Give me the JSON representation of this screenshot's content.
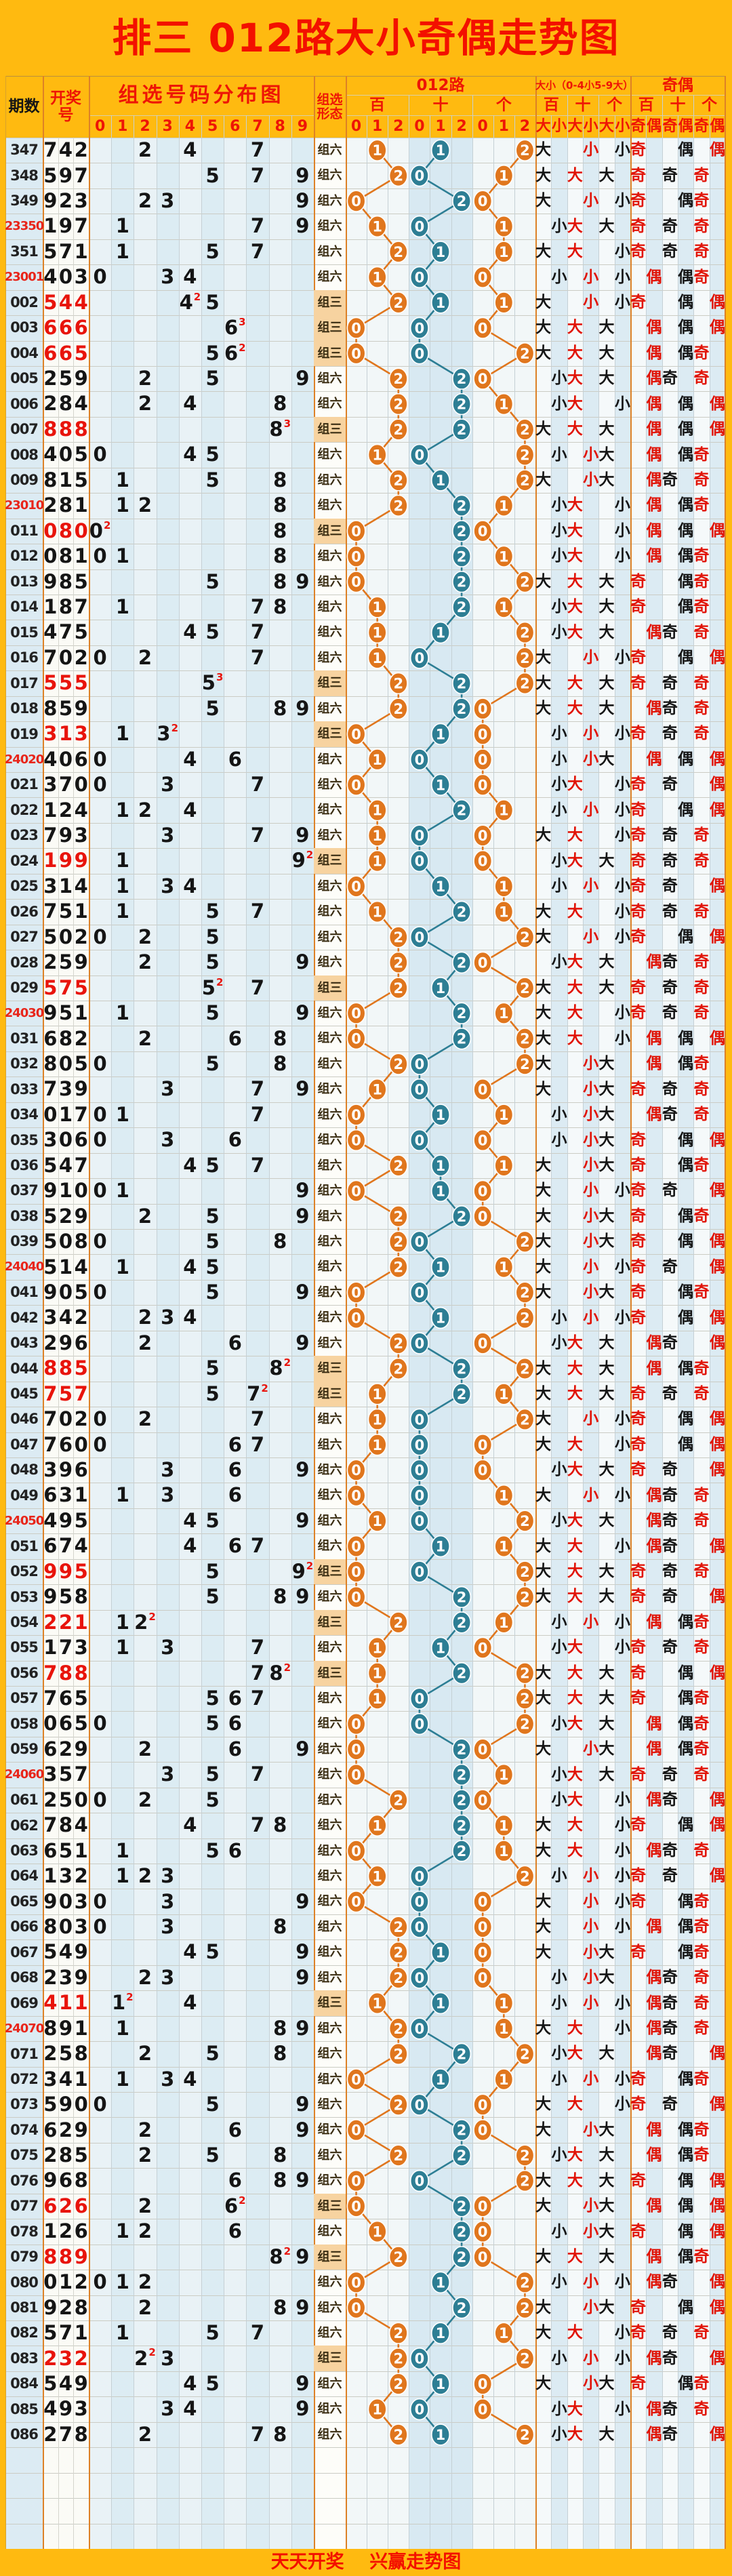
{
  "title": "排三 012路大小奇偶走势图",
  "footer": "天天开奖    兴赢走势图",
  "header": {
    "period": "期数",
    "draw_no": "开奖号",
    "distribution": "组选号码分布图",
    "digit_labels": [
      "0",
      "1",
      "2",
      "3",
      "4",
      "5",
      "6",
      "7",
      "8",
      "9"
    ],
    "pattern": "组选形态",
    "road012": "012路",
    "size": "大小（0-4小5-9大）",
    "parity": "奇偶",
    "pos_labels": [
      "百",
      "十",
      "个"
    ],
    "road_sub": [
      "0",
      "1",
      "2"
    ],
    "size_sub": [
      "大",
      "小"
    ],
    "parity_sub": [
      "奇",
      "偶"
    ]
  },
  "legend": {
    "big": "大",
    "small": "小",
    "odd": "奇",
    "even": "偶",
    "zu3": "组三",
    "zu6": "组六"
  },
  "colors": {
    "page_orange": "#ffba10",
    "title_red": "#f31000",
    "header_red": "#ee1506",
    "circle_bai_ge": "#e0761d",
    "circle_shi": "#2d7e94",
    "zu3_highlight": "#f7d3a0",
    "period_red": "#e8251a",
    "stripe_blue": "#dcebf3",
    "stripe_light": "#f2f7f8",
    "border_orange": "#dd8126"
  },
  "chart_data": {
    "type": "table",
    "title": "排三 012路大小奇偶走势图",
    "columns": [
      "期数",
      "开奖号",
      "组选形态",
      "百012路",
      "十012路",
      "个012路",
      "百大小",
      "十大小",
      "个大小",
      "百奇偶",
      "十奇偶",
      "个奇偶"
    ],
    "derivation_rules": {
      "road012": "digit mod 3",
      "size": "0-4 = 小, 5-9 = 大",
      "parity": "odd = 奇, even = 偶",
      "repeat_superscript": "count of repeated digit shown as small red superscript"
    },
    "rows": [
      {
        "period": "347",
        "num": "742",
        "pattern": "组六"
      },
      {
        "period": "348",
        "num": "597",
        "pattern": "组六"
      },
      {
        "period": "349",
        "num": "923",
        "pattern": "组六"
      },
      {
        "period": "23350",
        "num": "197",
        "pattern": "组六"
      },
      {
        "period": "351",
        "num": "571",
        "pattern": "组六"
      },
      {
        "period": "23001",
        "num": "403",
        "pattern": "组六"
      },
      {
        "period": "002",
        "num": "544",
        "pattern": "组三"
      },
      {
        "period": "003",
        "num": "666",
        "pattern": "组三"
      },
      {
        "period": "004",
        "num": "665",
        "pattern": "组三"
      },
      {
        "period": "005",
        "num": "259",
        "pattern": "组六"
      },
      {
        "period": "006",
        "num": "284",
        "pattern": "组六"
      },
      {
        "period": "007",
        "num": "888",
        "pattern": "组三"
      },
      {
        "period": "008",
        "num": "405",
        "pattern": "组六"
      },
      {
        "period": "009",
        "num": "815",
        "pattern": "组六"
      },
      {
        "period": "23010",
        "num": "281",
        "pattern": "组六"
      },
      {
        "period": "011",
        "num": "080",
        "pattern": "组三"
      },
      {
        "period": "012",
        "num": "081",
        "pattern": "组六"
      },
      {
        "period": "013",
        "num": "985",
        "pattern": "组六"
      },
      {
        "period": "014",
        "num": "187",
        "pattern": "组六"
      },
      {
        "period": "015",
        "num": "475",
        "pattern": "组六"
      },
      {
        "period": "016",
        "num": "702",
        "pattern": "组六"
      },
      {
        "period": "017",
        "num": "555",
        "pattern": "组三"
      },
      {
        "period": "018",
        "num": "859",
        "pattern": "组六"
      },
      {
        "period": "019",
        "num": "313",
        "pattern": "组三"
      },
      {
        "period": "24020",
        "num": "406",
        "pattern": "组六"
      },
      {
        "period": "021",
        "num": "370",
        "pattern": "组六"
      },
      {
        "period": "022",
        "num": "124",
        "pattern": "组六"
      },
      {
        "period": "023",
        "num": "793",
        "pattern": "组六"
      },
      {
        "period": "024",
        "num": "199",
        "pattern": "组三"
      },
      {
        "period": "025",
        "num": "314",
        "pattern": "组六"
      },
      {
        "period": "026",
        "num": "751",
        "pattern": "组六"
      },
      {
        "period": "027",
        "num": "502",
        "pattern": "组六"
      },
      {
        "period": "028",
        "num": "259",
        "pattern": "组六"
      },
      {
        "period": "029",
        "num": "575",
        "pattern": "组三"
      },
      {
        "period": "24030",
        "num": "951",
        "pattern": "组六"
      },
      {
        "period": "031",
        "num": "682",
        "pattern": "组六"
      },
      {
        "period": "032",
        "num": "805",
        "pattern": "组六"
      },
      {
        "period": "033",
        "num": "739",
        "pattern": "组六"
      },
      {
        "period": "034",
        "num": "017",
        "pattern": "组六"
      },
      {
        "period": "035",
        "num": "306",
        "pattern": "组六"
      },
      {
        "period": "036",
        "num": "547",
        "pattern": "组六"
      },
      {
        "period": "037",
        "num": "910",
        "pattern": "组六"
      },
      {
        "period": "038",
        "num": "529",
        "pattern": "组六"
      },
      {
        "period": "039",
        "num": "508",
        "pattern": "组六"
      },
      {
        "period": "24040",
        "num": "514",
        "pattern": "组六"
      },
      {
        "period": "041",
        "num": "905",
        "pattern": "组六"
      },
      {
        "period": "042",
        "num": "342",
        "pattern": "组六"
      },
      {
        "period": "043",
        "num": "296",
        "pattern": "组六"
      },
      {
        "period": "044",
        "num": "885",
        "pattern": "组三"
      },
      {
        "period": "045",
        "num": "757",
        "pattern": "组三"
      },
      {
        "period": "046",
        "num": "702",
        "pattern": "组六"
      },
      {
        "period": "047",
        "num": "760",
        "pattern": "组六"
      },
      {
        "period": "048",
        "num": "396",
        "pattern": "组六"
      },
      {
        "period": "049",
        "num": "631",
        "pattern": "组六"
      },
      {
        "period": "24050",
        "num": "495",
        "pattern": "组六"
      },
      {
        "period": "051",
        "num": "674",
        "pattern": "组六"
      },
      {
        "period": "052",
        "num": "995",
        "pattern": "组三"
      },
      {
        "period": "053",
        "num": "958",
        "pattern": "组六"
      },
      {
        "period": "054",
        "num": "221",
        "pattern": "组三"
      },
      {
        "period": "055",
        "num": "173",
        "pattern": "组六"
      },
      {
        "period": "056",
        "num": "788",
        "pattern": "组三"
      },
      {
        "period": "057",
        "num": "765",
        "pattern": "组六"
      },
      {
        "period": "058",
        "num": "065",
        "pattern": "组六"
      },
      {
        "period": "059",
        "num": "629",
        "pattern": "组六"
      },
      {
        "period": "24060",
        "num": "357",
        "pattern": "组六"
      },
      {
        "period": "061",
        "num": "250",
        "pattern": "组六"
      },
      {
        "period": "062",
        "num": "784",
        "pattern": "组六"
      },
      {
        "period": "063",
        "num": "651",
        "pattern": "组六"
      },
      {
        "period": "064",
        "num": "132",
        "pattern": "组六"
      },
      {
        "period": "065",
        "num": "903",
        "pattern": "组六"
      },
      {
        "period": "066",
        "num": "803",
        "pattern": "组六"
      },
      {
        "period": "067",
        "num": "549",
        "pattern": "组六"
      },
      {
        "period": "068",
        "num": "239",
        "pattern": "组六"
      },
      {
        "period": "069",
        "num": "411",
        "pattern": "组三"
      },
      {
        "period": "24070",
        "num": "891",
        "pattern": "组六"
      },
      {
        "period": "071",
        "num": "258",
        "pattern": "组六"
      },
      {
        "period": "072",
        "num": "341",
        "pattern": "组六"
      },
      {
        "period": "073",
        "num": "590",
        "pattern": "组六"
      },
      {
        "period": "074",
        "num": "629",
        "pattern": "组六"
      },
      {
        "period": "075",
        "num": "285",
        "pattern": "组六"
      },
      {
        "period": "076",
        "num": "968",
        "pattern": "组六"
      },
      {
        "period": "077",
        "num": "626",
        "pattern": "组三"
      },
      {
        "period": "078",
        "num": "126",
        "pattern": "组六"
      },
      {
        "period": "079",
        "num": "889",
        "pattern": "组三"
      },
      {
        "period": "080",
        "num": "012",
        "pattern": "组六"
      },
      {
        "period": "081",
        "num": "928",
        "pattern": "组六"
      },
      {
        "period": "082",
        "num": "571",
        "pattern": "组六"
      },
      {
        "period": "083",
        "num": "232",
        "pattern": "组三"
      },
      {
        "period": "084",
        "num": "549",
        "pattern": "组六"
      },
      {
        "period": "085",
        "num": "493",
        "pattern": "组六"
      },
      {
        "period": "086",
        "num": "278",
        "pattern": "组六"
      }
    ]
  }
}
